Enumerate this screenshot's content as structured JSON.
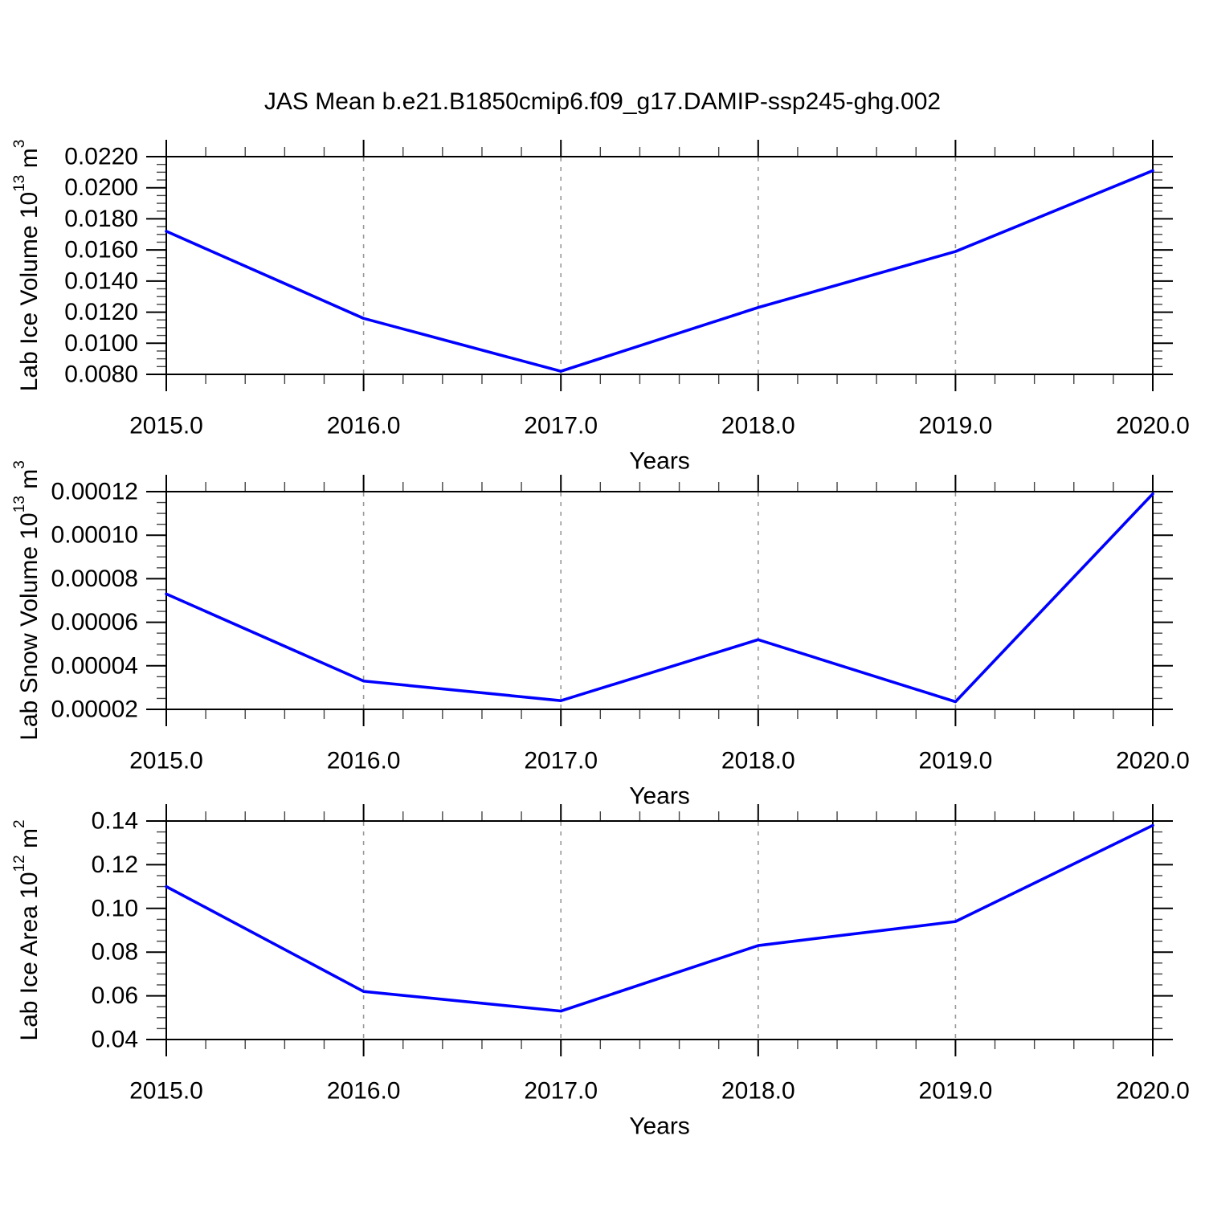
{
  "title": "JAS Mean b.e21.B1850cmip6.f09_g17.DAMIP-ssp245-ghg.002",
  "colors": {
    "line": "#0000FF",
    "grid": "#999999",
    "axis": "#000000",
    "minor_tick": "#444444",
    "background": "#FFFFFF"
  },
  "chart_data": [
    {
      "type": "line",
      "slug": "lab-ice-volume",
      "y_axis": {
        "name": "Lab Ice Volume",
        "power": "13",
        "unit": "m",
        "unit_power": "3"
      },
      "x_axis_title": "Years",
      "x": [
        2015,
        2016,
        2017,
        2018,
        2019,
        2020
      ],
      "x_tick_labels": [
        "2015.0",
        "2016.0",
        "2017.0",
        "2018.0",
        "2019.0",
        "2020.0"
      ],
      "x_minor_step": 0.2,
      "grid_x": [
        2016,
        2017,
        2018,
        2019
      ],
      "xlim": [
        2015,
        2020
      ],
      "ylim": [
        0.008,
        0.022
      ],
      "y_tick_values": [
        0.022,
        0.02,
        0.018,
        0.016,
        0.014,
        0.012,
        0.01,
        0.008
      ],
      "y_tick_labels": [
        "0.0220",
        "0.0200",
        "0.0180",
        "0.0160",
        "0.0140",
        "0.0120",
        "0.0100",
        "0.0080"
      ],
      "y_minor_step": 0.0005,
      "values": [
        0.0172,
        0.0116,
        0.0082,
        0.0123,
        0.0159,
        0.0211
      ],
      "legend": "none",
      "grid_style": "dashed-vertical"
    },
    {
      "type": "line",
      "slug": "lab-snow-volume",
      "y_axis": {
        "name": "Lab Snow Volume",
        "power": "13",
        "unit": "m",
        "unit_power": "3"
      },
      "x_axis_title": "Years",
      "x": [
        2015,
        2016,
        2017,
        2018,
        2019,
        2020
      ],
      "x_tick_labels": [
        "2015.0",
        "2016.0",
        "2017.0",
        "2018.0",
        "2019.0",
        "2020.0"
      ],
      "x_minor_step": 0.2,
      "grid_x": [
        2016,
        2017,
        2018,
        2019
      ],
      "xlim": [
        2015,
        2020
      ],
      "ylim": [
        2e-05,
        0.00012
      ],
      "y_tick_values": [
        0.00012,
        0.0001,
        8e-05,
        6e-05,
        4e-05,
        2e-05
      ],
      "y_tick_labels": [
        "0.00012",
        "0.00010",
        "0.00008",
        "0.00006",
        "0.00004",
        "0.00002"
      ],
      "y_minor_step": 5e-06,
      "values": [
        7.3e-05,
        3.3e-05,
        2.4e-05,
        5.2e-05,
        2.35e-05,
        0.000119
      ],
      "legend": "none",
      "grid_style": "dashed-vertical"
    },
    {
      "type": "line",
      "slug": "lab-ice-area",
      "y_axis": {
        "name": "Lab Ice Area",
        "power": "12",
        "unit": "m",
        "unit_power": "2"
      },
      "x_axis_title": "Years",
      "x": [
        2015,
        2016,
        2017,
        2018,
        2019,
        2020
      ],
      "x_tick_labels": [
        "2015.0",
        "2016.0",
        "2017.0",
        "2018.0",
        "2019.0",
        "2020.0"
      ],
      "x_minor_step": 0.2,
      "grid_x": [
        2016,
        2017,
        2018,
        2019
      ],
      "xlim": [
        2015,
        2020
      ],
      "ylim": [
        0.04,
        0.14
      ],
      "y_tick_values": [
        0.14,
        0.12,
        0.1,
        0.08,
        0.06,
        0.04
      ],
      "y_tick_labels": [
        "0.14",
        "0.12",
        "0.10",
        "0.08",
        "0.06",
        "0.04"
      ],
      "y_minor_step": 0.005,
      "values": [
        0.11,
        0.062,
        0.053,
        0.083,
        0.094,
        0.138
      ],
      "legend": "none",
      "grid_style": "dashed-vertical"
    }
  ]
}
